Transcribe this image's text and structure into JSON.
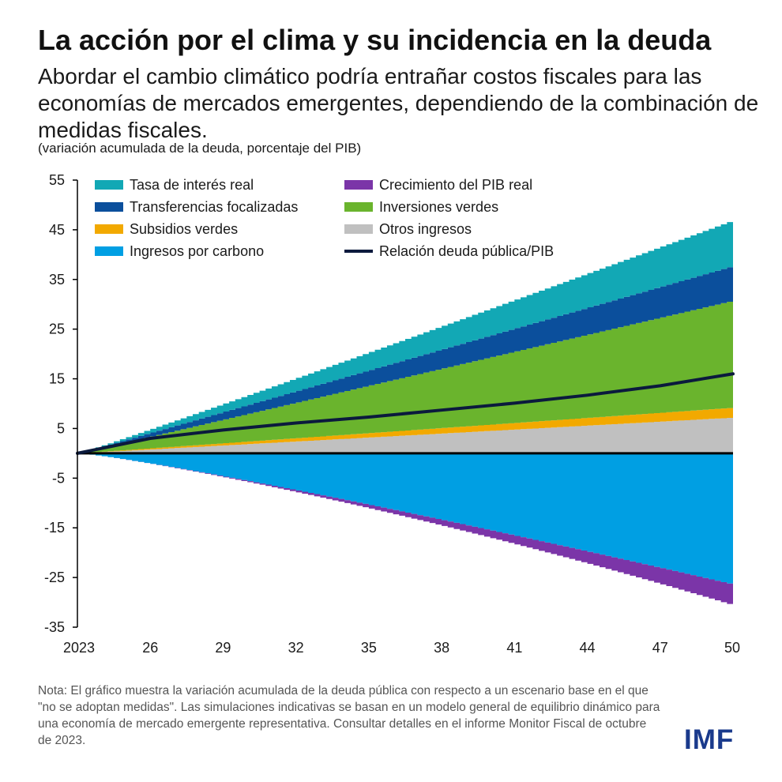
{
  "header": {
    "title": "La acción por el clima y su incidencia en la deuda",
    "subtitle": "Abordar el cambio climático podría entrañar costos fiscales para las economías de mercados emergentes, dependiendo de la combinación de medidas fiscales.",
    "units": "(variación acumulada de la deuda, porcentaje del PIB)"
  },
  "note": "Nota: El gráfico muestra la variación acumulada de la deuda pública con respecto a un escenario base en el que \"no se adoptan medidas\". Las simulaciones indicativas se basan en un modelo general de equilibrio dinámico para una economía de mercado emergente representativa. Consultar detalles en el informe Monitor Fiscal de octubre de 2023.",
  "logo": "IMF",
  "chart_data": {
    "type": "area",
    "stacked": true,
    "x_start": 2023,
    "x_end": 2050,
    "x_step": 0.25,
    "x_tick_labels": [
      "2023",
      "26",
      "29",
      "32",
      "35",
      "38",
      "41",
      "44",
      "47",
      "50"
    ],
    "y_ticks": [
      55,
      45,
      35,
      25,
      15,
      5,
      -5,
      -15,
      -25,
      -35
    ],
    "ylim": [
      -35,
      55
    ],
    "xlabel": "",
    "ylabel": "",
    "legend_position": "top-left, two columns",
    "series": [
      {
        "name": "Ingresos por carbono",
        "color": "#009fe3",
        "side": "negative",
        "end_value": -26.5,
        "shape_exponent": 1.15
      },
      {
        "name": "Crecimiento del PIB real",
        "color": "#7b35a8",
        "side": "negative",
        "end_value": -4.2,
        "shape_exponent": 2.2
      },
      {
        "name": "Otros ingresos",
        "color": "#c0c0c0",
        "side": "positive",
        "end_value": 7.2,
        "shape_exponent": 1.0
      },
      {
        "name": "Subsidios verdes",
        "color": "#f2a900",
        "side": "positive",
        "end_value": 2.0,
        "shape_exponent": 1.0
      },
      {
        "name": "Inversiones verdes",
        "color": "#6ab42d",
        "side": "positive",
        "end_value": 21.6,
        "shape_exponent": 1.0
      },
      {
        "name": "Transferencias focalizadas",
        "color": "#0b4f9c",
        "side": "positive",
        "end_value": 7.0,
        "shape_exponent": 1.0
      },
      {
        "name": "Tasa de interés real",
        "color": "#12a8b5",
        "side": "positive",
        "end_value": 9.2,
        "shape_exponent": 1.15
      }
    ],
    "line": {
      "name": "Relación deuda pública/PIB",
      "color": "#0b1a3d",
      "values": [
        {
          "x": 2023,
          "y": 0
        },
        {
          "x": 2026,
          "y": 3.0
        },
        {
          "x": 2029,
          "y": 4.7
        },
        {
          "x": 2032,
          "y": 6.1
        },
        {
          "x": 2035,
          "y": 7.3
        },
        {
          "x": 2038,
          "y": 8.7
        },
        {
          "x": 2041,
          "y": 10.1
        },
        {
          "x": 2044,
          "y": 11.7
        },
        {
          "x": 2047,
          "y": 13.6
        },
        {
          "x": 2050,
          "y": 16.0
        }
      ]
    },
    "legend_order": [
      "Tasa de interés real",
      "Crecimiento del PIB real",
      "Transferencias focalizadas",
      "Inversiones verdes",
      "Subsidios verdes",
      "Otros ingresos",
      "Ingresos por carbono",
      "Relación deuda pública/PIB"
    ]
  }
}
